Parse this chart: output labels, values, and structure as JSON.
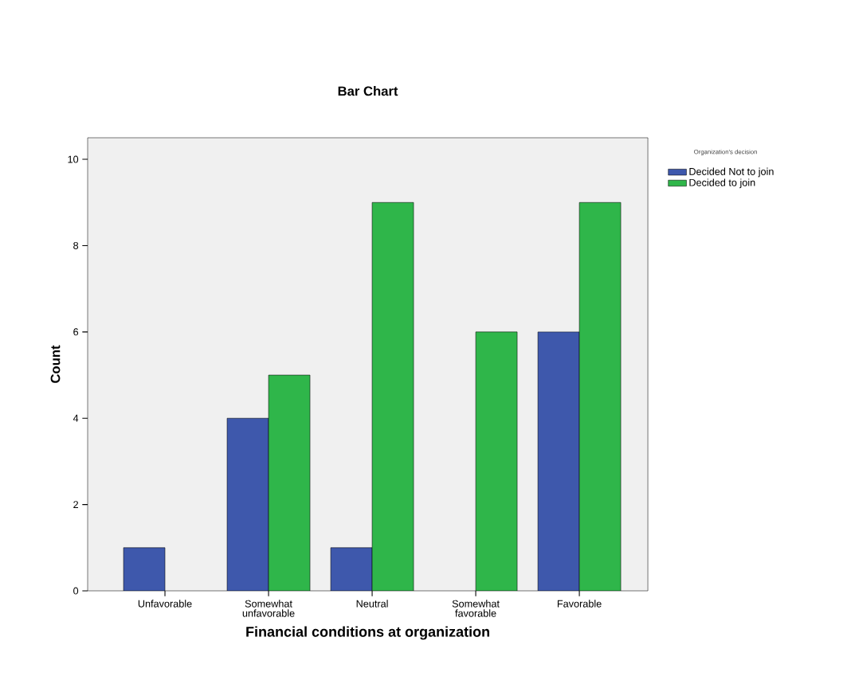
{
  "chart_data": {
    "type": "bar",
    "title": "Bar Chart",
    "xlabel": "Financial conditions at organization",
    "ylabel": "Count",
    "legend_title": "Organization's decision",
    "categories": [
      "Unfavorable",
      "Somewhat unfavorable",
      "Neutral",
      "Somewhat favorable",
      "Favorable"
    ],
    "series": [
      {
        "name": "Decided Not to join",
        "color": "#3e58ac",
        "values": [
          1,
          4,
          1,
          null,
          6
        ]
      },
      {
        "name": "Decided to join",
        "color": "#2fb64a",
        "values": [
          null,
          5,
          9,
          6,
          9
        ]
      }
    ],
    "ylim": [
      0,
      10.5
    ],
    "yticks": [
      0,
      2,
      4,
      6,
      8,
      10
    ],
    "grid": false,
    "legend": "top right"
  }
}
